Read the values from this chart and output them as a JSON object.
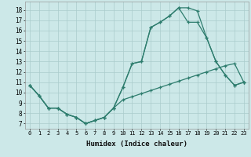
{
  "title": "",
  "xlabel": "Humidex (Indice chaleur)",
  "background_color": "#cce8e8",
  "grid_color": "#aacccc",
  "line_color": "#2e7d6e",
  "xlim": [
    -0.5,
    23.5
  ],
  "ylim": [
    6.5,
    18.8
  ],
  "xticks": [
    0,
    1,
    2,
    3,
    4,
    5,
    6,
    7,
    8,
    9,
    10,
    11,
    12,
    13,
    14,
    15,
    16,
    17,
    18,
    19,
    20,
    21,
    22,
    23
  ],
  "yticks": [
    7,
    8,
    9,
    10,
    11,
    12,
    13,
    14,
    15,
    16,
    17,
    18
  ],
  "line1_x": [
    0,
    1,
    2,
    3,
    4,
    5,
    6,
    7,
    8,
    9,
    10,
    11,
    12,
    13,
    14,
    15,
    16,
    17,
    18,
    19,
    20,
    21,
    22,
    23
  ],
  "line1_y": [
    10.7,
    9.7,
    8.5,
    8.5,
    7.9,
    7.6,
    7.0,
    7.3,
    7.6,
    8.5,
    10.5,
    12.8,
    13.0,
    16.3,
    16.8,
    17.4,
    18.2,
    18.2,
    17.9,
    15.3,
    13.0,
    11.7,
    10.7,
    11.0
  ],
  "line2_x": [
    0,
    1,
    2,
    3,
    4,
    5,
    6,
    7,
    8,
    9,
    10,
    11,
    12,
    13,
    14,
    15,
    16,
    17,
    18,
    19,
    20,
    21,
    22,
    23
  ],
  "line2_y": [
    10.7,
    9.7,
    8.5,
    8.5,
    7.9,
    7.6,
    7.0,
    7.3,
    7.6,
    8.5,
    9.3,
    9.6,
    9.9,
    10.2,
    10.5,
    10.8,
    11.1,
    11.4,
    11.7,
    12.0,
    12.3,
    12.6,
    12.8,
    11.0
  ],
  "line3_x": [
    0,
    1,
    2,
    3,
    4,
    5,
    6,
    7,
    8,
    9,
    10,
    11,
    12,
    13,
    14,
    15,
    16,
    17,
    18,
    19,
    20,
    21,
    22,
    23
  ],
  "line3_y": [
    10.7,
    9.7,
    8.5,
    8.5,
    7.9,
    7.6,
    7.0,
    7.3,
    7.6,
    8.5,
    10.5,
    12.8,
    13.0,
    16.3,
    16.8,
    17.4,
    18.2,
    16.8,
    16.8,
    15.3,
    13.0,
    11.7,
    10.7,
    11.0
  ]
}
